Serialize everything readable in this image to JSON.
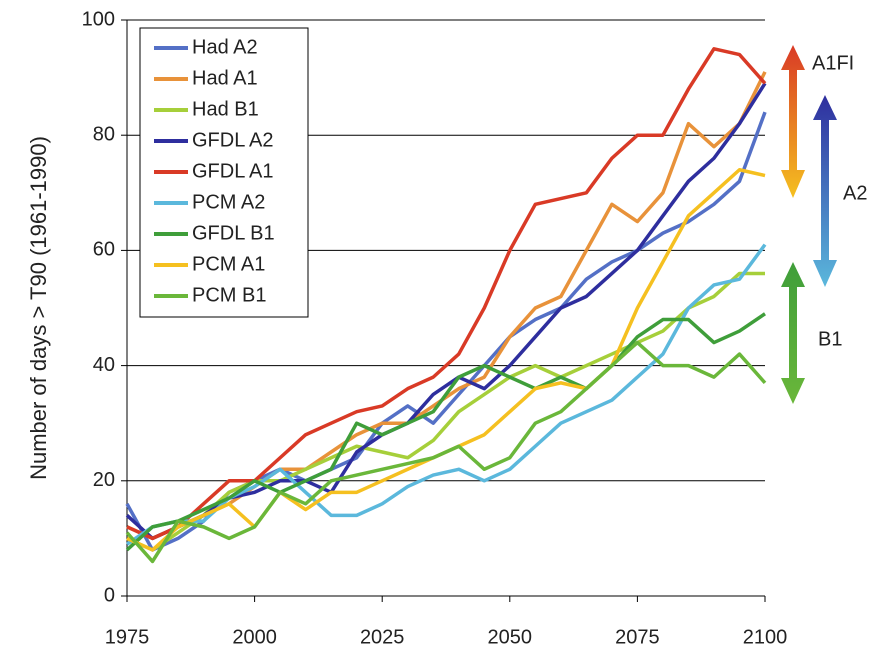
{
  "chart_data": {
    "type": "line",
    "y_label": "Number of days > T90 (1961-1990)",
    "x": [
      1975,
      1980,
      1985,
      1990,
      1995,
      2000,
      2005,
      2010,
      2015,
      2020,
      2025,
      2030,
      2035,
      2040,
      2045,
      2050,
      2055,
      2060,
      2065,
      2070,
      2075,
      2080,
      2085,
      2090,
      2095,
      2100
    ],
    "series": [
      {
        "name": "Had A2",
        "color": "#5470c6",
        "values": [
          16,
          8,
          10,
          13,
          18,
          20,
          22,
          20,
          22,
          24,
          30,
          33,
          30,
          35,
          40,
          45,
          48,
          50,
          55,
          58,
          60,
          63,
          65,
          68,
          72,
          84
        ]
      },
      {
        "name": "Had A1",
        "color": "#e8923a",
        "values": [
          12,
          10,
          12,
          14,
          16,
          19,
          22,
          22,
          25,
          28,
          30,
          30,
          33,
          36,
          38,
          45,
          50,
          52,
          60,
          68,
          65,
          70,
          82,
          78,
          82,
          91
        ]
      },
      {
        "name": "Had B1",
        "color": "#a6cf3a",
        "values": [
          10,
          8,
          11,
          14,
          18,
          20,
          20,
          22,
          24,
          26,
          25,
          24,
          27,
          32,
          35,
          38,
          40,
          38,
          40,
          42,
          44,
          46,
          50,
          52,
          56,
          56
        ]
      },
      {
        "name": "GFDL A2",
        "color": "#2e2e9e",
        "values": [
          14,
          10,
          12,
          14,
          17,
          18,
          20,
          20,
          18,
          25,
          28,
          30,
          35,
          38,
          36,
          40,
          45,
          50,
          52,
          56,
          60,
          66,
          72,
          76,
          82,
          89
        ]
      },
      {
        "name": "GFDL A1",
        "color": "#d93a26",
        "values": [
          12,
          10,
          12,
          16,
          20,
          20,
          24,
          28,
          30,
          32,
          33,
          36,
          38,
          42,
          50,
          60,
          68,
          69,
          70,
          76,
          80,
          80,
          88,
          95,
          94,
          89
        ]
      },
      {
        "name": "PCM A2",
        "color": "#5bb8dc",
        "values": [
          9,
          12,
          13,
          13,
          17,
          19,
          22,
          18,
          14,
          14,
          16,
          19,
          21,
          22,
          20,
          22,
          26,
          30,
          32,
          34,
          38,
          42,
          50,
          54,
          55,
          61
        ]
      },
      {
        "name": "GFDL B1",
        "color": "#3f9e3a",
        "values": [
          8,
          12,
          13,
          15,
          17,
          20,
          18,
          20,
          22,
          30,
          28,
          30,
          32,
          38,
          40,
          38,
          36,
          38,
          36,
          40,
          45,
          48,
          48,
          44,
          46,
          49
        ]
      },
      {
        "name": "PCM A1",
        "color": "#f5c020",
        "values": [
          10,
          8,
          12,
          14,
          16,
          12,
          18,
          15,
          18,
          18,
          20,
          22,
          24,
          26,
          28,
          32,
          36,
          37,
          36,
          40,
          50,
          58,
          66,
          70,
          74,
          73
        ]
      },
      {
        "name": "PCM B1",
        "color": "#6ab73a",
        "values": [
          11,
          6,
          13,
          12,
          10,
          12,
          18,
          16,
          20,
          21,
          22,
          23,
          24,
          26,
          22,
          24,
          30,
          32,
          36,
          40,
          44,
          40,
          40,
          38,
          42,
          37
        ]
      }
    ],
    "xlim": [
      1975,
      2100
    ],
    "xticks": [
      1975,
      2000,
      2025,
      2050,
      2075,
      2100
    ],
    "ylim": [
      0,
      100
    ],
    "yticks": [
      0,
      20,
      40,
      60,
      80,
      100
    ],
    "grid": true,
    "annotations": [
      "A1FI",
      "A2",
      "B1"
    ]
  }
}
